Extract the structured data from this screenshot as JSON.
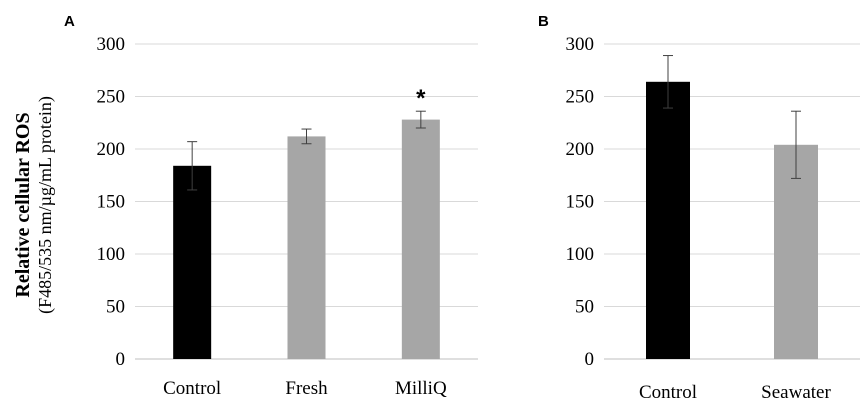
{
  "ylabel": {
    "main": "Relative cellular ROS",
    "sub": "(F485/535 nm/µg/mL protein)"
  },
  "chart_data": [
    {
      "type": "bar",
      "panel_label": "A",
      "categories": [
        "Control",
        "Fresh",
        "MilliQ"
      ],
      "values": [
        184,
        212,
        228
      ],
      "errors": [
        23,
        7,
        8
      ],
      "colors": [
        "#000000",
        "#a6a6a6",
        "#a6a6a6"
      ],
      "significance": [
        "",
        "",
        "*"
      ],
      "ylim": [
        0,
        300
      ],
      "yticks": [
        0,
        50,
        100,
        150,
        200,
        250,
        300
      ],
      "grid": true
    },
    {
      "type": "bar",
      "panel_label": "B",
      "categories": [
        "Control",
        "Seawater"
      ],
      "values": [
        264,
        204
      ],
      "errors": [
        25,
        32
      ],
      "colors": [
        "#000000",
        "#a6a6a6"
      ],
      "significance": [
        "",
        ""
      ],
      "ylim": [
        0,
        300
      ],
      "yticks": [
        0,
        50,
        100,
        150,
        200,
        250,
        300
      ],
      "grid": true
    }
  ]
}
